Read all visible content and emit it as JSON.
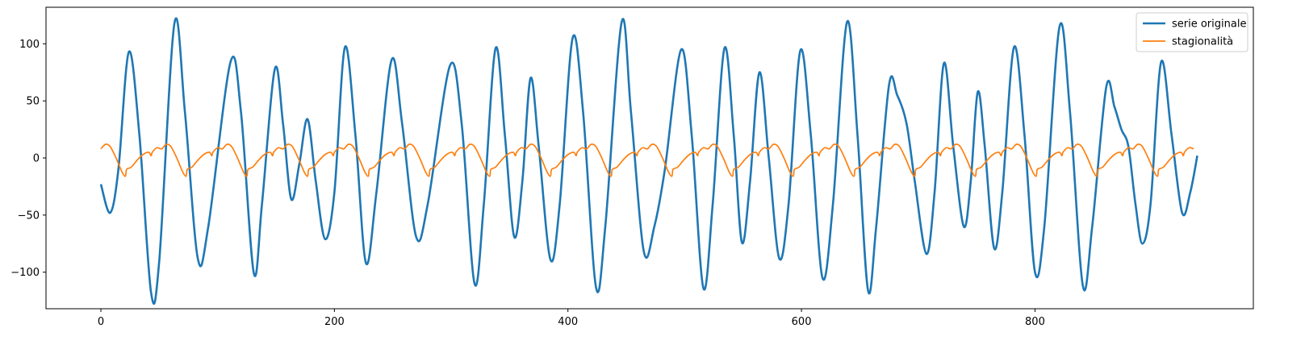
{
  "chart_data": {
    "type": "line",
    "title": "",
    "xlabel": "",
    "ylabel": "",
    "xlim": [
      -47,
      987
    ],
    "ylim": [
      -132,
      132
    ],
    "x_ticks": [
      0,
      200,
      400,
      600,
      800
    ],
    "y_ticks": [
      -100,
      -50,
      0,
      50,
      100
    ],
    "grid": false,
    "legend_position": "top-right",
    "series": [
      {
        "name": "serie originale",
        "color": "#1f77b4",
        "points": [
          [
            0,
            -23
          ],
          [
            8,
            -48
          ],
          [
            15,
            -10
          ],
          [
            24,
            93
          ],
          [
            33,
            20
          ],
          [
            43,
            -118
          ],
          [
            50,
            -90
          ],
          [
            63,
            118
          ],
          [
            72,
            40
          ],
          [
            83,
            -88
          ],
          [
            92,
            -60
          ],
          [
            111,
            84
          ],
          [
            120,
            40
          ],
          [
            131,
            -101
          ],
          [
            138,
            -40
          ],
          [
            149,
            78
          ],
          [
            156,
            30
          ],
          [
            163,
            -36
          ],
          [
            170,
            -5
          ],
          [
            177,
            34
          ],
          [
            184,
            -20
          ],
          [
            192,
            -71
          ],
          [
            200,
            -30
          ],
          [
            209,
            97
          ],
          [
            218,
            20
          ],
          [
            227,
            -92
          ],
          [
            236,
            -30
          ],
          [
            249,
            86
          ],
          [
            258,
            30
          ],
          [
            270,
            -69
          ],
          [
            280,
            -40
          ],
          [
            299,
            81
          ],
          [
            309,
            30
          ],
          [
            320,
            -110
          ],
          [
            328,
            -40
          ],
          [
            338,
            96
          ],
          [
            346,
            20
          ],
          [
            354,
            -69
          ],
          [
            361,
            -20
          ],
          [
            368,
            70
          ],
          [
            375,
            10
          ],
          [
            385,
            -89
          ],
          [
            393,
            -40
          ],
          [
            404,
            105
          ],
          [
            413,
            40
          ],
          [
            424,
            -113
          ],
          [
            432,
            -60
          ],
          [
            446,
            119
          ],
          [
            454,
            40
          ],
          [
            465,
            -82
          ],
          [
            474,
            -60
          ],
          [
            483,
            -10
          ],
          [
            497,
            95
          ],
          [
            506,
            20
          ],
          [
            516,
            -114
          ],
          [
            524,
            -40
          ],
          [
            534,
            96
          ],
          [
            542,
            20
          ],
          [
            549,
            -74
          ],
          [
            556,
            -20
          ],
          [
            564,
            75
          ],
          [
            572,
            0
          ],
          [
            581,
            -88
          ],
          [
            589,
            -40
          ],
          [
            599,
            94
          ],
          [
            608,
            20
          ],
          [
            618,
            -105
          ],
          [
            627,
            -40
          ],
          [
            639,
            119
          ],
          [
            648,
            20
          ],
          [
            657,
            -116
          ],
          [
            664,
            -60
          ],
          [
            675,
            64
          ],
          [
            682,
            55
          ],
          [
            690,
            30
          ],
          [
            697,
            -20
          ],
          [
            707,
            -84
          ],
          [
            714,
            -30
          ],
          [
            722,
            83
          ],
          [
            730,
            10
          ],
          [
            739,
            -60
          ],
          [
            745,
            -20
          ],
          [
            751,
            58
          ],
          [
            757,
            10
          ],
          [
            765,
            -79
          ],
          [
            772,
            -30
          ],
          [
            782,
            97
          ],
          [
            791,
            20
          ],
          [
            800,
            -100
          ],
          [
            808,
            -60
          ],
          [
            821,
            115
          ],
          [
            830,
            40
          ],
          [
            841,
            -112
          ],
          [
            849,
            -60
          ],
          [
            861,
            62
          ],
          [
            868,
            45
          ],
          [
            874,
            25
          ],
          [
            880,
            10
          ],
          [
            886,
            -40
          ],
          [
            892,
            -75
          ],
          [
            899,
            -40
          ],
          [
            908,
            84
          ],
          [
            917,
            20
          ],
          [
            926,
            -48
          ],
          [
            933,
            -30
          ],
          [
            939,
            2
          ]
        ]
      },
      {
        "name": "stagionalità",
        "color": "#ff7f0e",
        "period": 52,
        "start": 0,
        "end": 939,
        "cycle": [
          [
            0,
            8
          ],
          [
            4,
            12
          ],
          [
            8,
            10
          ],
          [
            13,
            0
          ],
          [
            18,
            -12
          ],
          [
            21,
            -16
          ],
          [
            22,
            -10
          ],
          [
            26,
            -8
          ],
          [
            31,
            -2
          ],
          [
            36,
            3
          ],
          [
            41,
            5
          ],
          [
            43,
            2
          ],
          [
            44,
            5
          ],
          [
            48,
            9
          ],
          [
            52,
            8
          ]
        ]
      }
    ]
  }
}
